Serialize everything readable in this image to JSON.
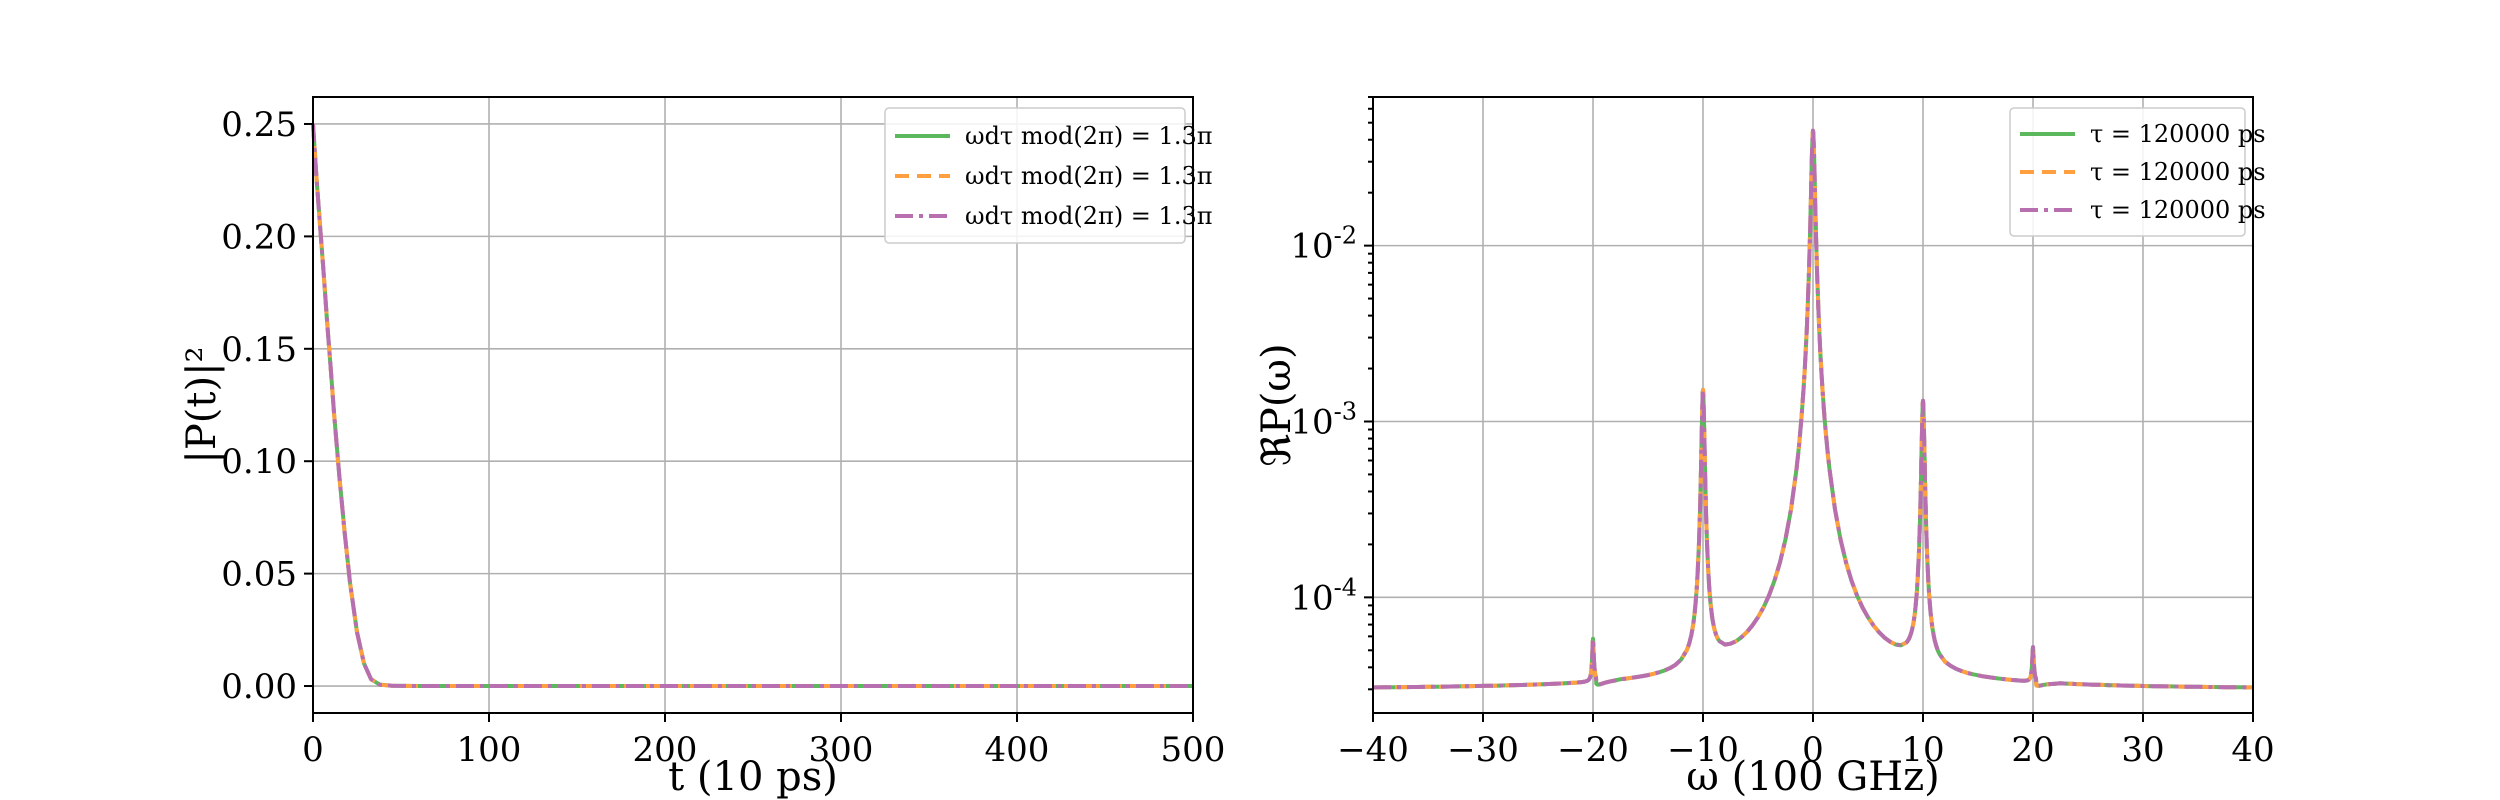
{
  "colors": {
    "green": "#5cb85c",
    "orange": "#ff9f3f",
    "purple": "#b86fb0",
    "grid": "#b0b0b0"
  },
  "chart_data": [
    {
      "type": "line",
      "xlabel": "t (10 ps)",
      "ylabel": "|P(t)|²",
      "xlim": [
        0,
        500
      ],
      "ylim": [
        -0.012,
        0.262
      ],
      "grid": true,
      "legend_position": "top-right",
      "xticks": [
        {
          "value": 0,
          "label": "0"
        },
        {
          "value": 100,
          "label": "100"
        },
        {
          "value": 200,
          "label": "200"
        },
        {
          "value": 300,
          "label": "300"
        },
        {
          "value": 400,
          "label": "400"
        },
        {
          "value": 500,
          "label": "500"
        }
      ],
      "yticks": [
        {
          "value": 0.0,
          "label": "0.00"
        },
        {
          "value": 0.05,
          "label": "0.05"
        },
        {
          "value": 0.1,
          "label": "0.10"
        },
        {
          "value": 0.15,
          "label": "0.15"
        },
        {
          "value": 0.2,
          "label": "0.20"
        },
        {
          "value": 0.25,
          "label": "0.25"
        }
      ],
      "series": [
        {
          "name": "ωdτ mod(2π) = 1.3π",
          "color": "#5cb85c",
          "dash": "",
          "x": [
            0,
            2,
            4,
            6,
            8,
            10,
            12,
            15,
            18,
            21,
            25,
            29,
            33,
            38,
            45,
            60,
            100,
            200,
            300,
            400,
            500
          ],
          "y": [
            0.25,
            0.226,
            0.205,
            0.184,
            0.162,
            0.142,
            0.121,
            0.093,
            0.068,
            0.046,
            0.024,
            0.01,
            0.003,
            0.0006,
            0.0001,
            0,
            0,
            0,
            0,
            0,
            0
          ]
        },
        {
          "name": "ωdτ mod(2π) = 1.3π",
          "color": "#ff9f3f",
          "dash": "14,8",
          "x": [
            0,
            2,
            4,
            6,
            8,
            10,
            12,
            15,
            18,
            21,
            25,
            29,
            33,
            38,
            45,
            60,
            100,
            200,
            300,
            400,
            500
          ],
          "y": [
            0.25,
            0.226,
            0.205,
            0.184,
            0.162,
            0.142,
            0.121,
            0.093,
            0.068,
            0.046,
            0.024,
            0.01,
            0.003,
            0.0006,
            0.0001,
            0,
            0,
            0,
            0,
            0,
            0
          ]
        },
        {
          "name": "ωdτ mod(2π) = 1.3π",
          "color": "#b86fb0",
          "dash": "18,6,4,6",
          "x": [
            0,
            2,
            4,
            6,
            8,
            10,
            12,
            15,
            18,
            21,
            25,
            29,
            33,
            38,
            45,
            60,
            100,
            200,
            300,
            400,
            500
          ],
          "y": [
            0.25,
            0.226,
            0.205,
            0.184,
            0.162,
            0.142,
            0.121,
            0.093,
            0.068,
            0.046,
            0.024,
            0.01,
            0.003,
            0.0006,
            0.0001,
            0,
            0,
            0,
            0,
            0,
            0
          ]
        }
      ]
    },
    {
      "type": "line",
      "xlabel": "ω (100 GHz)",
      "ylabel": "ℜP(ω)",
      "xlim": [
        -40,
        40
      ],
      "ylim": [
        2.2e-05,
        0.07
      ],
      "yscale": "log",
      "grid": true,
      "legend_position": "top-right",
      "xticks": [
        {
          "value": -40,
          "label": "−40"
        },
        {
          "value": -30,
          "label": "−30"
        },
        {
          "value": -20,
          "label": "−20"
        },
        {
          "value": -10,
          "label": "−10"
        },
        {
          "value": 0,
          "label": "0"
        },
        {
          "value": 10,
          "label": "10"
        },
        {
          "value": 20,
          "label": "20"
        },
        {
          "value": 30,
          "label": "30"
        },
        {
          "value": 40,
          "label": "40"
        }
      ],
      "yticks": [
        {
          "value": 0.0001,
          "base": "10",
          "exp": "-4"
        },
        {
          "value": 0.001,
          "base": "10",
          "exp": "-3"
        },
        {
          "value": 0.01,
          "base": "10",
          "exp": "-2"
        }
      ],
      "baseline": 3e-05,
      "peaks": [
        {
          "x": -20,
          "height": 5.5e-05,
          "width": 0.08
        },
        {
          "x": -10,
          "height": 0.0015,
          "width": 0.13
        },
        {
          "x": 0,
          "height": 0.045,
          "width": 0.16
        },
        {
          "x": 10,
          "height": 0.0013,
          "width": 0.13
        },
        {
          "x": 20,
          "height": 4.9e-05,
          "width": 0.08
        }
      ],
      "series": [
        {
          "name": "τ = 120000 ps",
          "color": "#5cb85c",
          "dash": ""
        },
        {
          "name": "τ = 120000 ps",
          "color": "#ff9f3f",
          "dash": "14,8"
        },
        {
          "name": "τ = 120000 ps",
          "color": "#b86fb0",
          "dash": "18,6,4,6"
        }
      ]
    }
  ]
}
